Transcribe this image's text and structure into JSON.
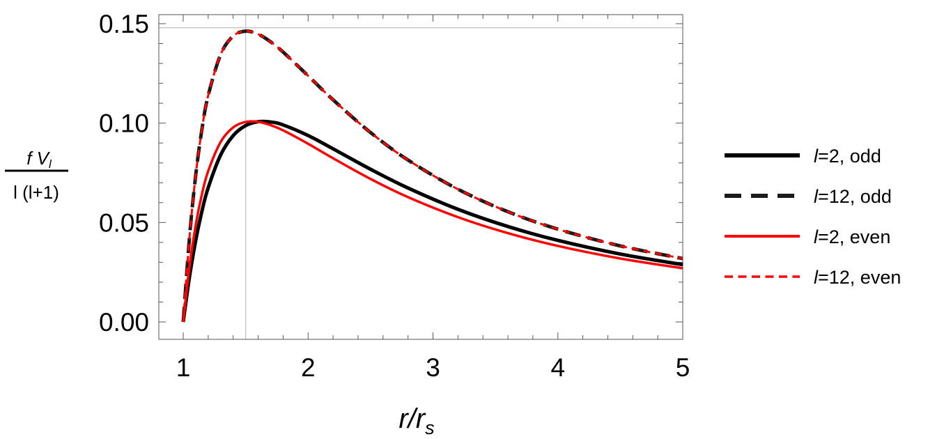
{
  "chart_data": {
    "type": "line",
    "xlabel": {
      "main": "r/r",
      "sub": "s"
    },
    "ylabel": {
      "numerator": "f V",
      "numerator_sub": "l",
      "denominator": "l (l+1)"
    },
    "xlim": [
      0.805,
      5
    ],
    "ylim": [
      -0.009,
      0.155
    ],
    "xticks": [
      "1",
      "2",
      "3",
      "4",
      "5"
    ],
    "xtick_values": [
      1,
      2,
      3,
      4,
      5
    ],
    "yticks": [
      "0.00",
      "0.05",
      "0.10",
      "0.15"
    ],
    "ytick_values": [
      0,
      0.05,
      0.1,
      0.15
    ],
    "reference_lines": {
      "vertical_x": 1.5,
      "horizontal_y": 0.148
    },
    "grid": false,
    "legend_position": "right",
    "x": [
      1,
      1.05,
      1.1,
      1.15,
      1.2,
      1.3,
      1.4,
      1.5,
      1.6,
      1.7,
      1.8,
      2,
      2.2,
      2.5,
      2.8,
      3.2,
      3.6,
      4,
      4.5,
      5
    ],
    "series": [
      {
        "name": "l=2, odd",
        "color": "#000000",
        "dash": "solid",
        "values": [
          0,
          0.02262,
          0.04098,
          0.05574,
          0.06752,
          0.08403,
          0.09371,
          0.09877,
          0.10071,
          0.10057,
          0.09907,
          0.09375,
          0.08708,
          0.0768,
          0.06735,
          0.05665,
          0.04799,
          0.04102,
          0.03414,
          0.0288
        ]
      },
      {
        "name": "l=12, odd",
        "color": "#1a1a1a",
        "dash": "long-dash",
        "values": [
          0,
          0.0424,
          0.07382,
          0.09698,
          0.11389,
          0.13453,
          0.14377,
          0.14625,
          0.14473,
          0.14087,
          0.13571,
          0.1238,
          0.11171,
          0.09526,
          0.08143,
          0.06674,
          0.05543,
          0.04665,
          0.03824,
          0.03188
        ]
      },
      {
        "name": "l=2, even",
        "color": "#ff0000",
        "dash": "solid",
        "values": [
          0,
          0.02789,
          0.04874,
          0.06431,
          0.07589,
          0.09056,
          0.09782,
          0.1006,
          0.10063,
          0.09898,
          0.09635,
          0.08962,
          0.08233,
          0.07191,
          0.06278,
          0.05269,
          0.04465,
          0.03822,
          0.0319,
          0.027
        ]
      },
      {
        "name": "l=12, even",
        "color": "#ff0000",
        "dash": "short-dash",
        "values": [
          0,
          0.0424,
          0.07382,
          0.09698,
          0.11389,
          0.13453,
          0.14377,
          0.14625,
          0.14473,
          0.14087,
          0.13571,
          0.1238,
          0.11171,
          0.09526,
          0.08143,
          0.06674,
          0.05543,
          0.04665,
          0.03824,
          0.03188
        ]
      }
    ]
  }
}
